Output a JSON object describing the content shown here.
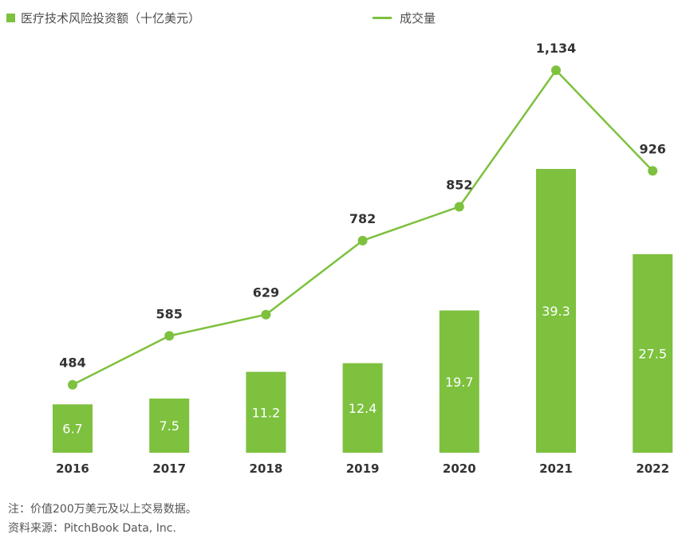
{
  "legend": {
    "bar_label": "医疗技术风险投资额（十亿美元）",
    "line_label": "成交量"
  },
  "notes": {
    "note": "注：价值200万美元及以上交易数据。",
    "source": "资料来源：PitchBook Data, Inc."
  },
  "colors": {
    "bar": "#7dc13e",
    "line": "#7dc13e"
  },
  "chart_data": {
    "type": "bar",
    "categories": [
      "2016",
      "2017",
      "2018",
      "2019",
      "2020",
      "2021",
      "2022"
    ],
    "series": [
      {
        "name": "医疗技术风险投资额（十亿美元）",
        "type": "bar",
        "values": [
          6.7,
          7.5,
          11.2,
          12.4,
          19.7,
          39.3,
          27.5
        ],
        "labels": [
          "6.7",
          "7.5",
          "11.2",
          "12.4",
          "19.7",
          "39.3",
          "27.5"
        ]
      },
      {
        "name": "成交量",
        "type": "line",
        "values": [
          484,
          585,
          629,
          782,
          852,
          1134,
          926
        ],
        "labels": [
          "484",
          "585",
          "629",
          "782",
          "852",
          "1,134",
          "926"
        ]
      }
    ],
    "title": "",
    "xlabel": "",
    "ylabel": "",
    "grid": false,
    "legend_position": "top"
  }
}
